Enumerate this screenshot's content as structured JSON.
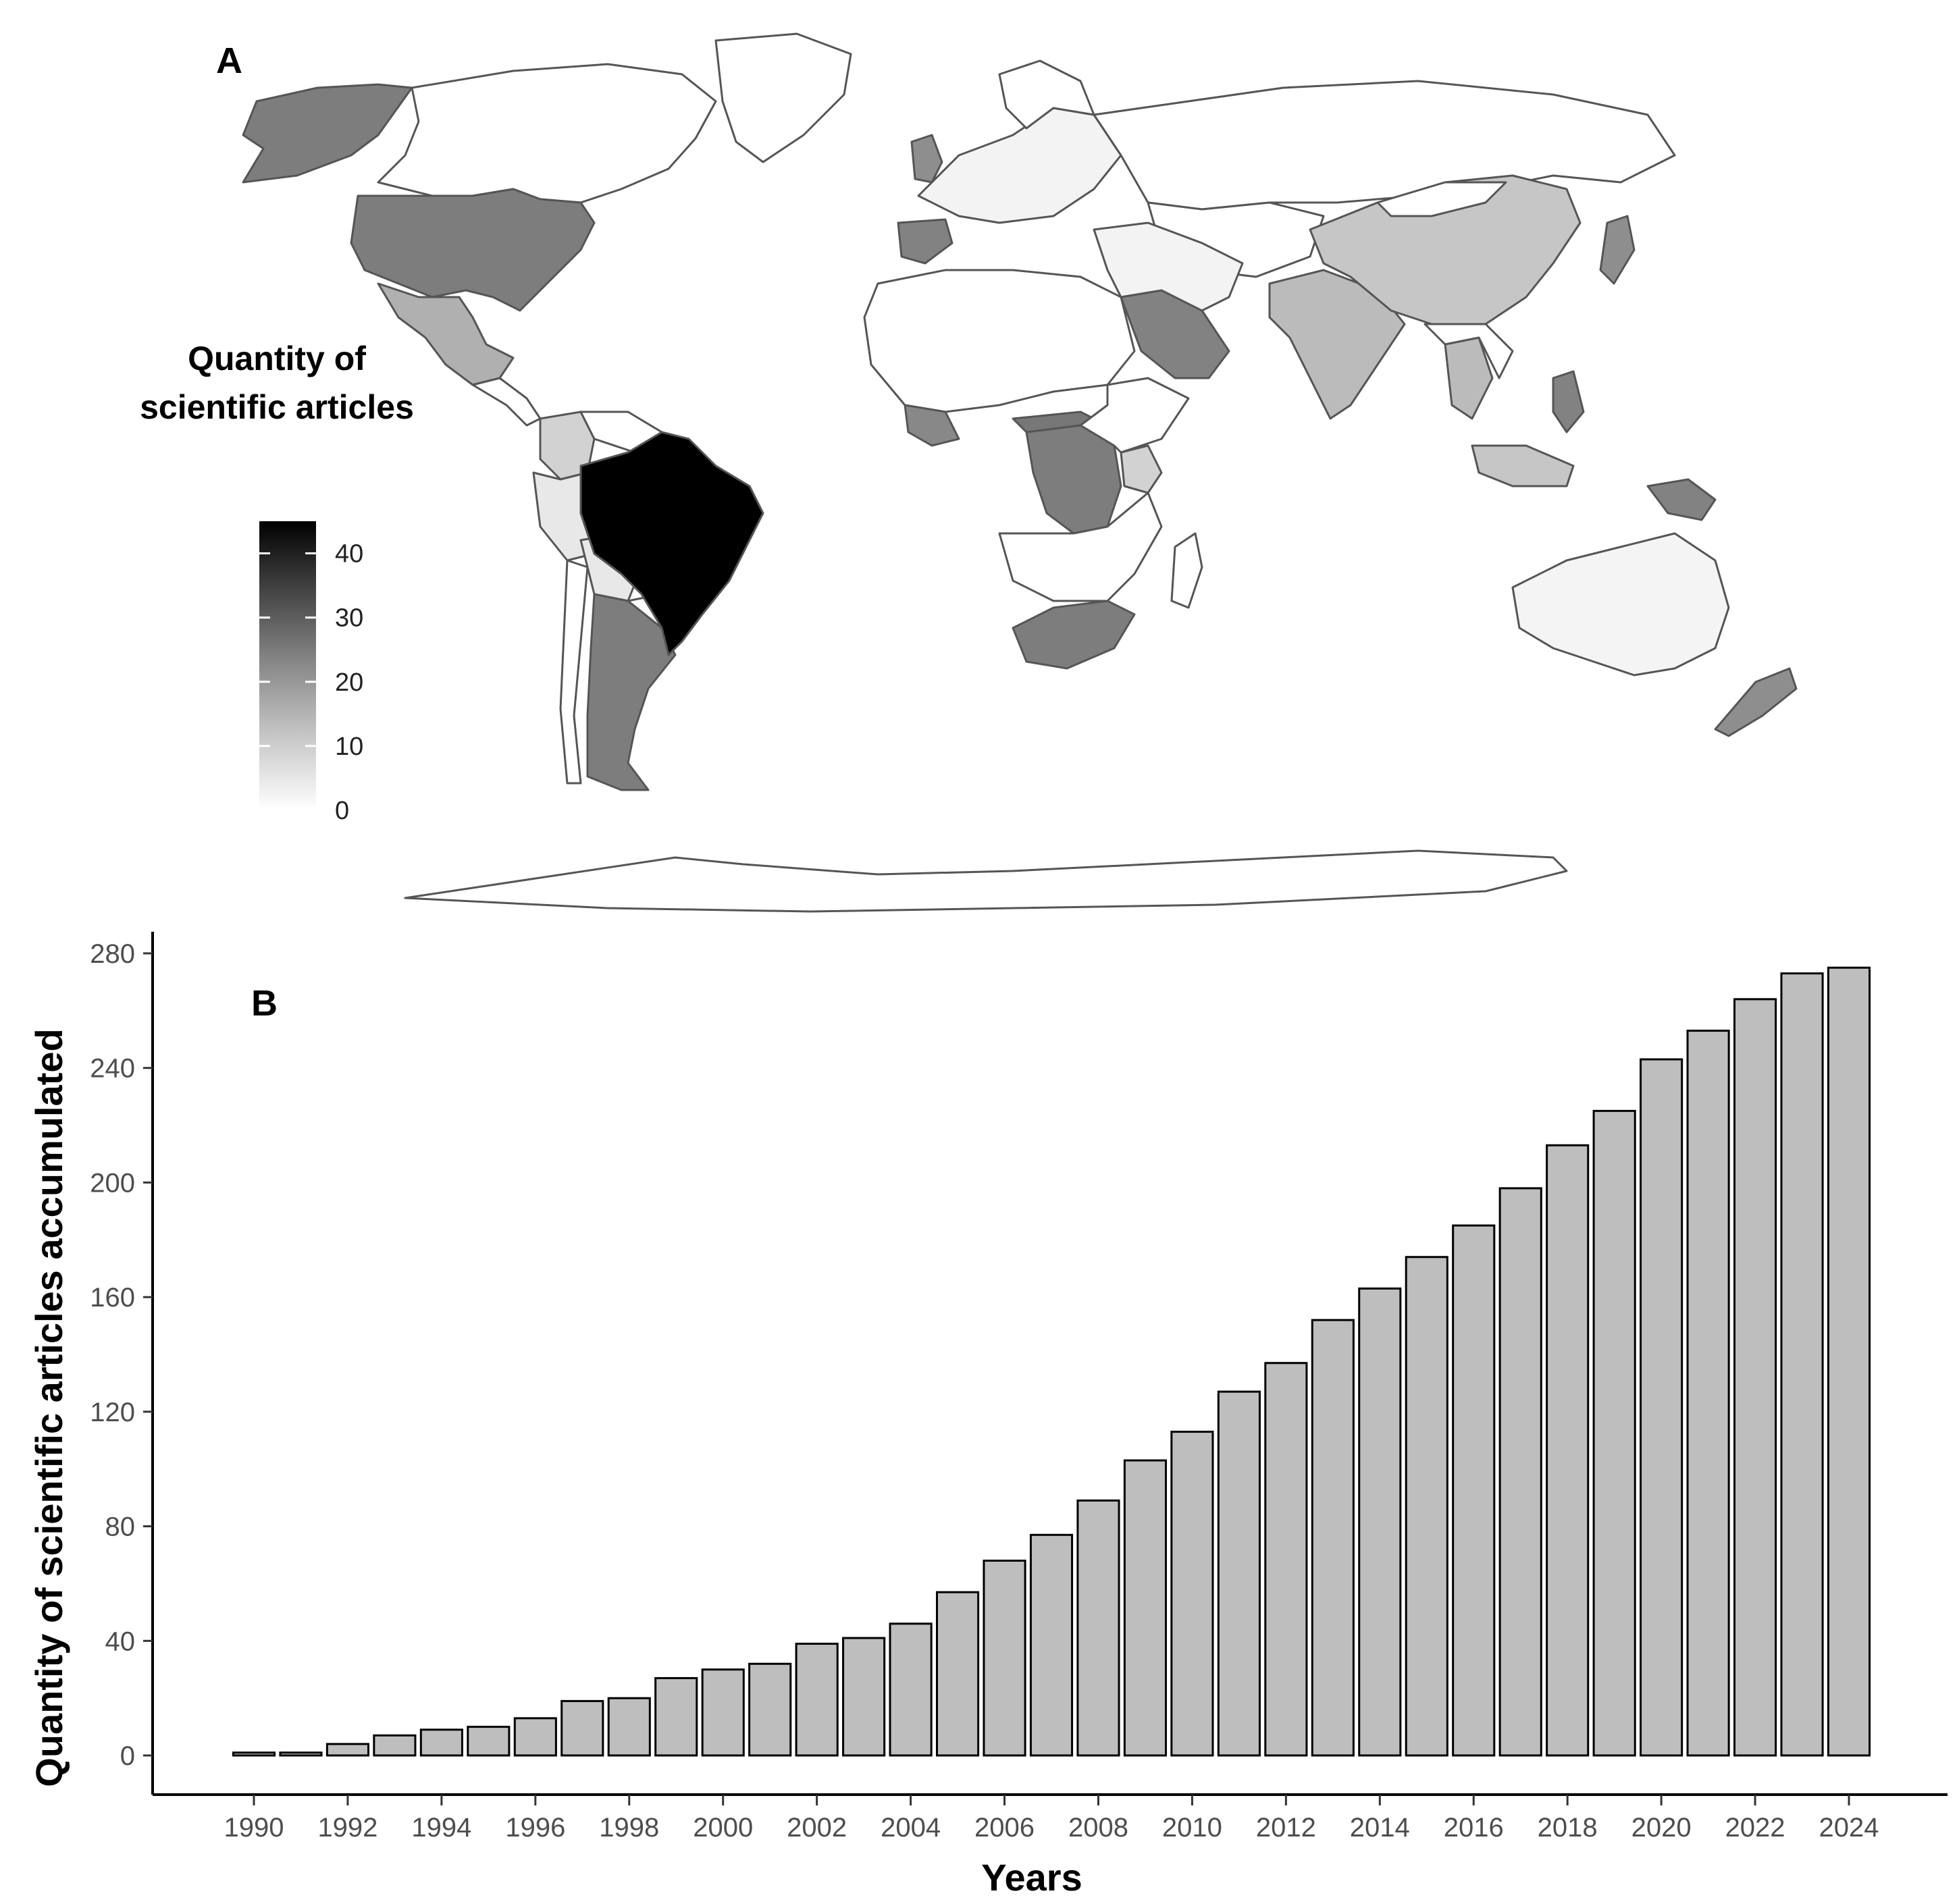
{
  "panel_a": {
    "letter": "A",
    "legend": {
      "title_line1": "Quantity of",
      "title_line2": "scientific articles",
      "ticks": [
        "40",
        "30",
        "20",
        "10",
        "0"
      ],
      "tick_values": [
        40,
        30,
        20,
        10,
        0
      ],
      "min": 0,
      "max": 45,
      "color_low": "#ffffff",
      "color_high": "#000000"
    },
    "map_levels": {
      "Brazil": 45,
      "United States": 23,
      "Alaska": 23,
      "Argentina": 23,
      "Mexico": 14,
      "Colombia": 8,
      "Peru": 4,
      "Bolivia": 4,
      "Spain": 22,
      "United Kingdom": 20,
      "Saudi Arabia": 22,
      "DR Congo": 23,
      "South Africa": 23,
      "China": 10,
      "India": 12,
      "Japan": 20,
      "Philippines": 22,
      "Papua New Guinea": 22,
      "Indonesia": 10,
      "Thailand": 12,
      "Kenya": 8,
      "Australia": 2,
      "New Zealand": 20
    }
  },
  "panel_b": {
    "letter": "B"
  },
  "chart_data": {
    "type": "bar",
    "title": "",
    "xlabel": "Years",
    "ylabel": "Quantity of scientific articles accumulated",
    "ylim": [
      0,
      280
    ],
    "yticks": [
      0,
      40,
      80,
      120,
      160,
      200,
      240,
      280
    ],
    "bar_fill": "#bebebe",
    "bar_stroke": "#000000",
    "grid": false,
    "categories": [
      "1990",
      "1991",
      "1992",
      "1993",
      "1994",
      "1995",
      "1996",
      "1997",
      "1998",
      "1999",
      "2000",
      "2001",
      "2002",
      "2003",
      "2004",
      "2005",
      "2006",
      "2007",
      "2008",
      "2009",
      "2010",
      "2011",
      "2012",
      "2013",
      "2014",
      "2015",
      "2016",
      "2017",
      "2018",
      "2019",
      "2020",
      "2021",
      "2022",
      "2023",
      "2024"
    ],
    "x_tick_labels": [
      "1990",
      "1992",
      "1994",
      "1996",
      "1998",
      "2000",
      "2002",
      "2004",
      "2006",
      "2008",
      "2010",
      "2012",
      "2014",
      "2016",
      "2018",
      "2020",
      "2022",
      "2024"
    ],
    "values": [
      1,
      1,
      4,
      7,
      9,
      10,
      13,
      19,
      20,
      27,
      30,
      32,
      39,
      41,
      46,
      57,
      68,
      77,
      89,
      103,
      113,
      127,
      137,
      152,
      163,
      174,
      185,
      198,
      213,
      225,
      243,
      253,
      264,
      273,
      275
    ]
  }
}
